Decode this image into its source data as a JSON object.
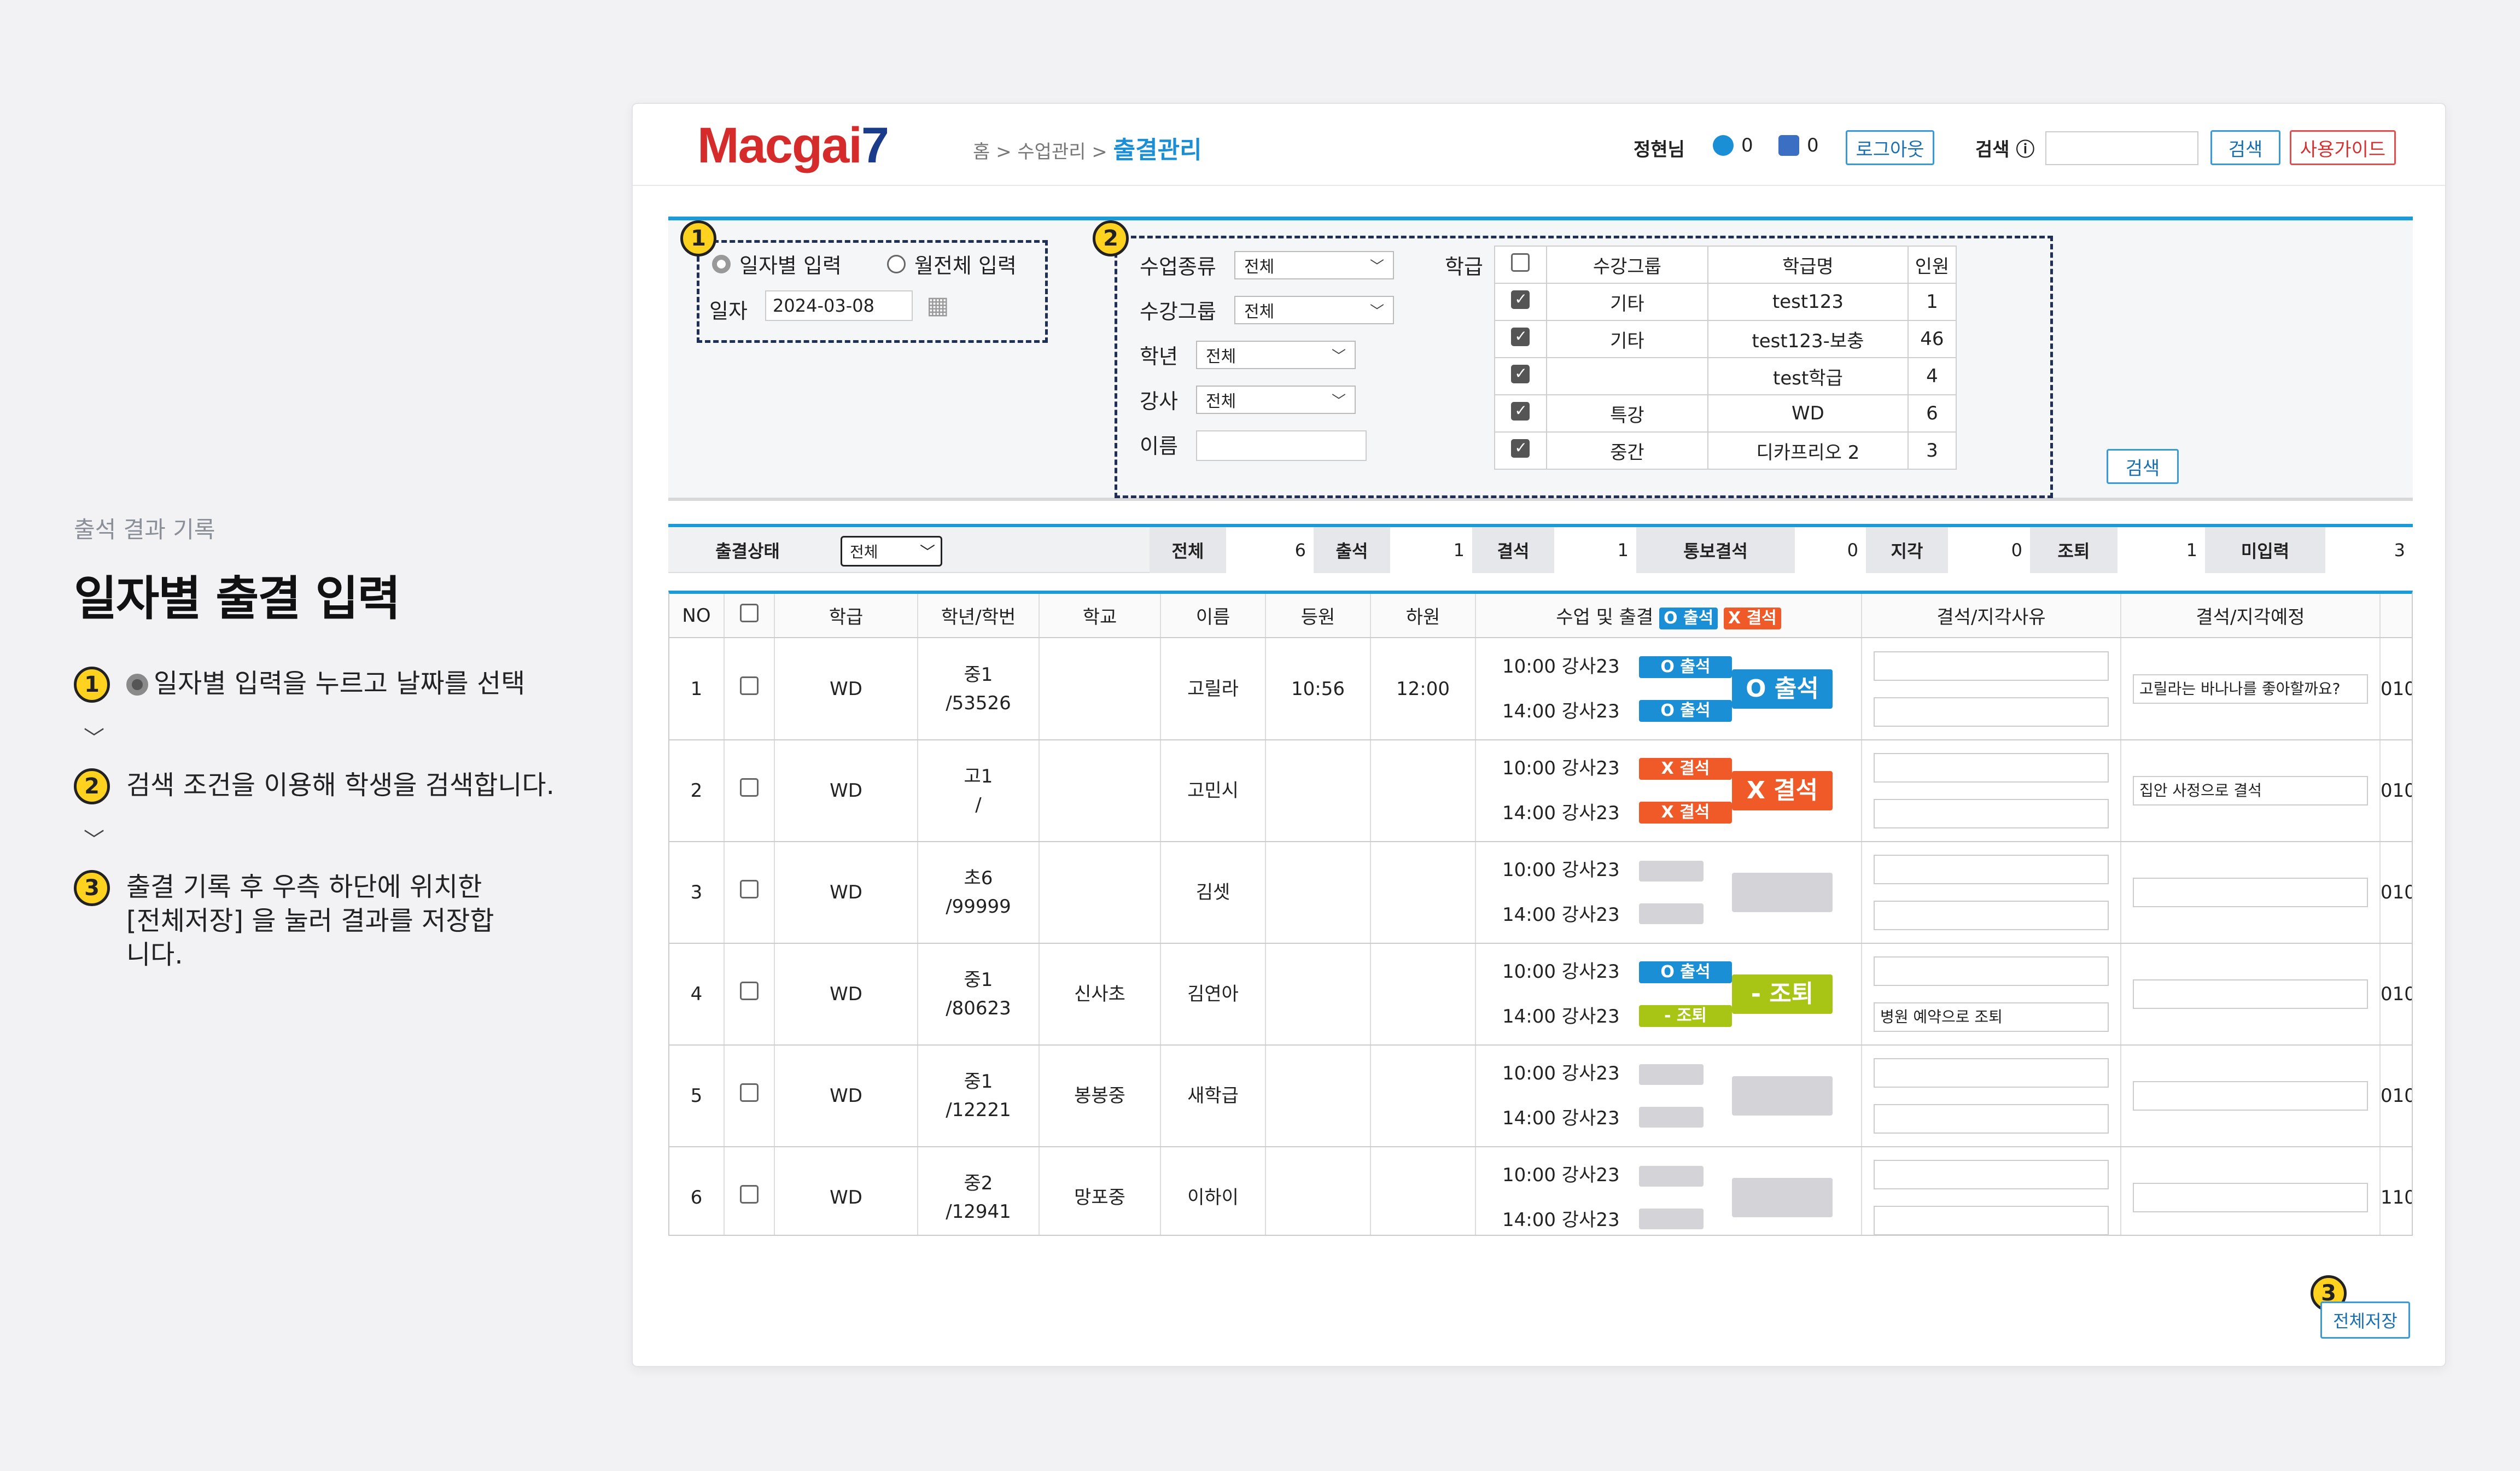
{
  "guide": {
    "subtitle": "출석 결과 기록",
    "title": "일자별 출결 입력",
    "steps": [
      {
        "n": "1",
        "text": "일자별 입력을 누르고 날짜를 선택"
      },
      {
        "n": "2",
        "text": "검색 조건을 이용해 학생을 검색합니다."
      },
      {
        "n": "3",
        "text": "출결 기록 후 우측 하단에 위치한 [전체저장] 을 눌러 결과를 저장합니다."
      }
    ]
  },
  "header": {
    "logo_text": "Macgai",
    "logo_num": "7",
    "breadcrumb": "홈 > 수업관리 >",
    "current": "출결관리",
    "user": "정현님",
    "count1": "0",
    "count2": "0",
    "logout": "로그아웃",
    "search_label": "검색 ⓘ",
    "search_btn": "검색",
    "guide_btn": "사용가이드"
  },
  "filter": {
    "badge1": "1",
    "badge2": "2",
    "radio_daily": "일자별 입력",
    "radio_monthly": "월전체 입력",
    "date_label": "일자",
    "date_value": "2024-03-08",
    "class_type_label": "수업종류",
    "class_type": "전체",
    "group_label": "수강그룹",
    "group": "전체",
    "grade_label": "학년",
    "grade": "전체",
    "teacher_label": "강사",
    "teacher": "전체",
    "name_label": "이름",
    "school_label": "학급",
    "search_btn": "검색",
    "group_table": {
      "headers": [
        "수강그룹",
        "학급명",
        "인원"
      ],
      "rows": [
        {
          "group": "기타",
          "name": "test123",
          "count": "1"
        },
        {
          "group": "기타",
          "name": "test123-보충",
          "count": "46"
        },
        {
          "group": "",
          "name": "test학급",
          "count": "4"
        },
        {
          "group": "특강",
          "name": "WD",
          "count": "6"
        },
        {
          "group": "중간",
          "name": "디카프리오 2",
          "count": "3"
        }
      ]
    }
  },
  "status_bar": {
    "label": "출결상태",
    "select": "전체",
    "items": [
      {
        "k": "전체",
        "v": "6"
      },
      {
        "k": "출석",
        "v": "1"
      },
      {
        "k": "결석",
        "v": "1"
      },
      {
        "k": "통보결석",
        "v": "0"
      },
      {
        "k": "지각",
        "v": "0"
      },
      {
        "k": "조퇴",
        "v": "1"
      },
      {
        "k": "미입력",
        "v": "3"
      }
    ]
  },
  "table": {
    "headers": {
      "no": "NO",
      "class": "학급",
      "grade": "학년/학번",
      "school": "학교",
      "name": "이름",
      "in": "등원",
      "out": "하원",
      "lesson": "수업 및 출결",
      "tag_att": "O 출석",
      "tag_abs": "X 결석",
      "reason": "결석/지각사유",
      "plan": "결석/지각예정"
    },
    "rows": [
      {
        "no": "1",
        "class": "WD",
        "g1": "중1",
        "g2": "/53526",
        "school": "",
        "name": "고릴라",
        "in": "10:56",
        "out": "12:00",
        "t1": "10:00 강사23",
        "t2": "14:00 강사23",
        "s1": "O 출석",
        "s2": "O 출석",
        "big": "O 출석",
        "r1": "",
        "r2": "",
        "plan": "고릴라는 바나나를 좋아할까요?",
        "extra": "010"
      },
      {
        "no": "2",
        "class": "WD",
        "g1": "고1",
        "g2": "/",
        "school": "",
        "name": "고민시",
        "in": "",
        "out": "",
        "t1": "10:00 강사23",
        "t2": "14:00 강사23",
        "s1": "X 결석",
        "s2": "X 결석",
        "big": "X 결석",
        "r1": "",
        "r2": "",
        "plan": "집안 사정으로 결석",
        "extra": "010"
      },
      {
        "no": "3",
        "class": "WD",
        "g1": "초6",
        "g2": "/99999",
        "school": "",
        "name": "김셋",
        "in": "",
        "out": "",
        "t1": "10:00 강사23",
        "t2": "14:00 강사23",
        "r1": "",
        "r2": "",
        "plan": "",
        "extra": "010"
      },
      {
        "no": "4",
        "class": "WD",
        "g1": "중1",
        "g2": "/80623",
        "school": "신사초",
        "name": "김연아",
        "in": "",
        "out": "",
        "t1": "10:00 강사23",
        "t2": "14:00 강사23",
        "s1": "O 출석",
        "s2": "- 조퇴",
        "big": "- 조퇴",
        "r1": "",
        "r2": "병원 예약으로 조퇴",
        "plan": "",
        "extra": "010"
      },
      {
        "no": "5",
        "class": "WD",
        "g1": "중1",
        "g2": "/12221",
        "school": "봉봉중",
        "name": "새학급",
        "in": "",
        "out": "",
        "t1": "10:00 강사23",
        "t2": "14:00 강사23",
        "r1": "",
        "r2": "",
        "plan": "",
        "extra": "010"
      },
      {
        "no": "6",
        "class": "WD",
        "g1": "중2",
        "g2": "/12941",
        "school": "망포중",
        "name": "이하이",
        "in": "",
        "out": "",
        "t1": "10:00 강사23",
        "t2": "14:00 강사23",
        "r1": "",
        "r2": "",
        "plan": "",
        "extra": "110"
      }
    ]
  },
  "save": {
    "badge": "3",
    "label": "전체저장"
  }
}
